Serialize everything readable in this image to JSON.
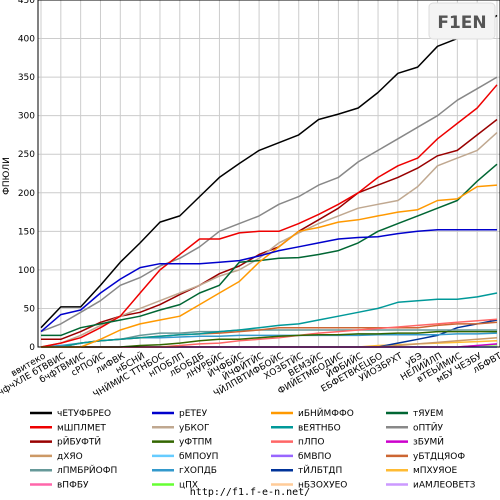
{
  "logo": {
    "text": "F1EN"
  },
  "footer": {
    "url": "http://f1.f-e-n.net/"
  },
  "chart_data": {
    "type": "line",
    "ylabel": "ФПЮЛИ",
    "ylim": [
      0,
      450
    ],
    "yticks": [
      0,
      50,
      100,
      150,
      200,
      250,
      300,
      350,
      400,
      450
    ],
    "grid": true,
    "legend_position": "bottom",
    "categories": [
      "ввитеко",
      "бчфчХЛЕ бТВВИС",
      "бчфТВМИС",
      "сРПОЙС",
      "лиФВК",
      "нБСНЙ",
      "ЧНЙМИС ТТНБОС",
      "нПОБЛП",
      "лБОБДБ",
      "лНУРБЙС",
      "ЙЧФБЙС",
      "ЙЧФЙТЙС",
      "ЧЙЛПВТИФБОЙС",
      "ХОЗБТЙС",
      "ВЕМЗЙС",
      "ФИЙЕТМБОДИС",
      "ЙФБИЙС",
      "ЕБФЕТВКЕЦБО",
      "УЙОЗБРХТ",
      "уБЭ",
      "НЕЛИЙЛП",
      "вТЕЬЙМИС",
      "мБУ ЧЕЗБУ",
      "лБФВТ"
    ],
    "series": [
      {
        "name": "чЕТУФБРЕО",
        "color": "#000000",
        "values": [
          25,
          52,
          52,
          80,
          110,
          135,
          162,
          170,
          195,
          220,
          238,
          255,
          265,
          275,
          295,
          302,
          310,
          330,
          355,
          363,
          390,
          400,
          410,
          430
        ]
      },
      {
        "name": "рЕТЕУ",
        "color": "#0000cc",
        "values": [
          20,
          42,
          48,
          70,
          88,
          103,
          108,
          108,
          108,
          110,
          112,
          118,
          125,
          130,
          135,
          140,
          142,
          143,
          147,
          150,
          152,
          152,
          152,
          152
        ]
      },
      {
        "name": "иБНЙМФФО",
        "color": "#ff9900",
        "values": [
          0,
          0,
          0,
          10,
          22,
          30,
          35,
          40,
          55,
          70,
          85,
          110,
          130,
          150,
          155,
          162,
          165,
          170,
          175,
          178,
          190,
          192,
          208,
          210
        ]
      },
      {
        "name": "тЯУЕМ",
        "color": "#006633",
        "values": [
          15,
          15,
          25,
          30,
          35,
          40,
          48,
          55,
          70,
          80,
          110,
          112,
          115,
          116,
          120,
          125,
          135,
          150,
          160,
          170,
          180,
          190,
          215,
          237
        ]
      },
      {
        "name": "мШПЛМЕТ",
        "color": "#ee0000",
        "values": [
          0,
          5,
          12,
          25,
          40,
          70,
          100,
          120,
          140,
          140,
          148,
          150,
          150,
          160,
          172,
          185,
          200,
          220,
          235,
          245,
          270,
          290,
          310,
          340
        ]
      },
      {
        "name": "уБКОГ",
        "color": "#c0a890",
        "values": [
          0,
          5,
          15,
          28,
          40,
          50,
          60,
          70,
          80,
          92,
          100,
          115,
          135,
          148,
          160,
          170,
          180,
          185,
          190,
          208,
          235,
          245,
          255,
          278
        ]
      },
      {
        "name": "вЕЯТНБО",
        "color": "#009999",
        "values": [
          0,
          0,
          5,
          8,
          10,
          12,
          14,
          16,
          17,
          20,
          22,
          25,
          28,
          30,
          35,
          40,
          45,
          50,
          58,
          60,
          62,
          62,
          65,
          70
        ]
      },
      {
        "name": "оПТЙУ",
        "color": "#888888",
        "values": [
          20,
          30,
          45,
          60,
          80,
          90,
          105,
          115,
          130,
          150,
          160,
          170,
          185,
          195,
          210,
          220,
          240,
          255,
          270,
          285,
          300,
          320,
          335,
          350
        ]
      },
      {
        "name": "рЙБУФТЙ",
        "color": "#990000",
        "values": [
          10,
          10,
          20,
          32,
          40,
          45,
          55,
          68,
          80,
          95,
          105,
          120,
          130,
          150,
          165,
          180,
          200,
          210,
          220,
          232,
          248,
          255,
          275,
          295
        ]
      },
      {
        "name": "уФТПМ",
        "color": "#336600",
        "values": [
          0,
          0,
          0,
          0,
          0,
          2,
          3,
          5,
          8,
          10,
          10,
          12,
          14,
          15,
          16,
          16,
          17,
          17,
          18,
          18,
          20,
          20,
          20,
          20
        ]
      },
      {
        "name": "пЛПО",
        "color": "#ff6666",
        "values": [
          0,
          0,
          0,
          0,
          0,
          0,
          0,
          2,
          4,
          5,
          8,
          10,
          12,
          15,
          18,
          20,
          22,
          24,
          26,
          28,
          30,
          32,
          34,
          36
        ]
      },
      {
        "name": "зБУМЙ",
        "color": "#cc00cc",
        "values": [
          0,
          0,
          0,
          0,
          0,
          0,
          0,
          0,
          0,
          0,
          0,
          0,
          0,
          0,
          0,
          0,
          0,
          0,
          0,
          0,
          0,
          0,
          2,
          4
        ]
      },
      {
        "name": "дХЯО",
        "color": "#cc9966",
        "values": [
          0,
          0,
          0,
          0,
          0,
          0,
          0,
          0,
          0,
          0,
          0,
          0,
          0,
          0,
          0,
          0,
          0,
          0,
          2,
          4,
          6,
          8,
          10,
          12
        ]
      },
      {
        "name": "бМПОУП",
        "color": "#66ccff",
        "values": [
          0,
          0,
          0,
          0,
          0,
          0,
          0,
          0,
          0,
          0,
          0,
          0,
          0,
          0,
          0,
          0,
          0,
          0,
          0,
          0,
          0,
          0,
          0,
          0
        ]
      },
      {
        "name": "бМВПО",
        "color": "#9966ff",
        "values": [
          0,
          0,
          0,
          0,
          0,
          0,
          0,
          0,
          0,
          0,
          0,
          0,
          0,
          0,
          0,
          0,
          0,
          0,
          0,
          0,
          0,
          0,
          0,
          0
        ]
      },
      {
        "name": "уБТДЦЯОФ",
        "color": "#cc6633",
        "values": [
          0,
          0,
          5,
          8,
          10,
          12,
          14,
          16,
          17,
          18,
          20,
          22,
          25,
          25,
          25,
          25,
          25,
          25,
          25,
          25,
          28,
          30,
          30,
          32
        ]
      },
      {
        "name": "лПМБРЙОФП",
        "color": "#669999",
        "values": [
          0,
          0,
          5,
          8,
          10,
          15,
          18,
          18,
          20,
          20,
          22,
          22,
          22,
          22,
          22,
          22,
          22,
          22,
          22,
          22,
          22,
          22,
          22,
          22
        ]
      },
      {
        "name": "гХОПДБ",
        "color": "#3399cc",
        "values": [
          0,
          2,
          5,
          8,
          10,
          12,
          12,
          13,
          14,
          14,
          15,
          15,
          15,
          15,
          15,
          15,
          15,
          16,
          16,
          16,
          16,
          17,
          17,
          18
        ]
      },
      {
        "name": "тЙЛБТДП",
        "color": "#003399",
        "values": [
          0,
          0,
          0,
          0,
          0,
          0,
          0,
          0,
          0,
          0,
          0,
          0,
          0,
          0,
          0,
          0,
          0,
          0,
          5,
          10,
          15,
          25,
          30,
          35
        ]
      },
      {
        "name": "мПХУЯОЕ",
        "color": "#ffbb33",
        "values": [
          0,
          0,
          0,
          0,
          0,
          0,
          0,
          0,
          0,
          0,
          0,
          0,
          0,
          0,
          0,
          0,
          0,
          2,
          3,
          4,
          5,
          6,
          7,
          8
        ]
      },
      {
        "name": "вПФБУ",
        "color": "#ff66aa",
        "values": [
          0,
          0,
          0,
          0,
          0,
          0,
          0,
          0,
          0,
          0,
          0,
          0,
          0,
          0,
          0,
          0,
          0,
          0,
          0,
          0,
          0,
          0,
          0,
          0
        ]
      },
      {
        "name": "цПХ",
        "color": "#66ff33",
        "values": [
          0,
          0,
          0,
          0,
          0,
          0,
          0,
          0,
          0,
          0,
          0,
          0,
          0,
          0,
          0,
          0,
          0,
          0,
          0,
          0,
          0,
          0,
          2,
          3
        ]
      },
      {
        "name": "нБЗОХУЕО",
        "color": "#ffcc99",
        "values": [
          0,
          0,
          0,
          0,
          0,
          0,
          0,
          0,
          0,
          0,
          0,
          0,
          0,
          0,
          0,
          0,
          0,
          0,
          0,
          0,
          0,
          0,
          0,
          0
        ]
      },
      {
        "name": "иАМЛЕОВЕТЗ",
        "color": "#cc99ff",
        "values": [
          0,
          0,
          0,
          0,
          0,
          0,
          0,
          0,
          0,
          0,
          0,
          0,
          0,
          0,
          0,
          0,
          0,
          0,
          0,
          0,
          0,
          0,
          0,
          0
        ]
      }
    ]
  }
}
